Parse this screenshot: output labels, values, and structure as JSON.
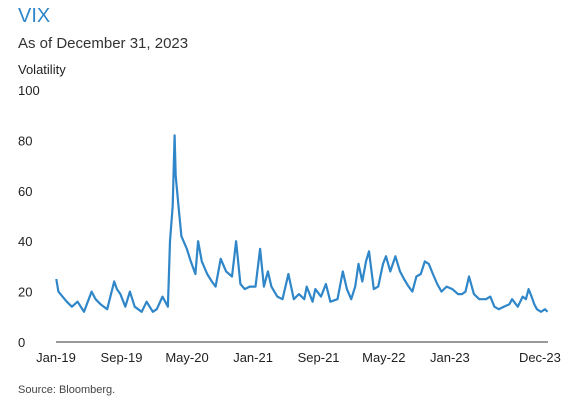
{
  "title": "VIX",
  "subtitle": "As of December 31, 2023",
  "source": "Source: Bloomberg.",
  "colors": {
    "title": "#2f86c8",
    "line": "#2f86c8",
    "axis": "#333333"
  },
  "chart_data": {
    "type": "line",
    "title": "VIX",
    "subtitle": "As of December 31, 2023",
    "xlabel": "",
    "ylabel": "Volatility",
    "ylim": [
      0,
      100
    ],
    "yticks": [
      0,
      20,
      40,
      60,
      80,
      100
    ],
    "xlim": [
      "2019-01-01",
      "2023-12-31"
    ],
    "xticks": [
      {
        "date": "2019-01-01",
        "label": "Jan-19"
      },
      {
        "date": "2019-09-01",
        "label": "Sep-19"
      },
      {
        "date": "2020-05-01",
        "label": "May-20"
      },
      {
        "date": "2021-01-01",
        "label": "Jan-21"
      },
      {
        "date": "2021-09-01",
        "label": "Sep-21"
      },
      {
        "date": "2022-05-01",
        "label": "May-22"
      },
      {
        "date": "2023-01-01",
        "label": "Jan-23"
      },
      {
        "date": "2023-12-01",
        "label": "Dec-23"
      }
    ],
    "grid": false,
    "series": [
      {
        "values": [
          [
            "2019-01-02",
            25
          ],
          [
            "2019-01-10",
            20
          ],
          [
            "2019-01-25",
            18
          ],
          [
            "2019-02-10",
            16
          ],
          [
            "2019-03-01",
            14
          ],
          [
            "2019-03-22",
            16
          ],
          [
            "2019-04-15",
            12
          ],
          [
            "2019-05-13",
            20
          ],
          [
            "2019-05-28",
            17
          ],
          [
            "2019-06-15",
            15
          ],
          [
            "2019-07-10",
            13
          ],
          [
            "2019-08-05",
            24
          ],
          [
            "2019-08-15",
            21
          ],
          [
            "2019-08-28",
            19
          ],
          [
            "2019-09-15",
            14
          ],
          [
            "2019-10-02",
            20
          ],
          [
            "2019-10-20",
            14
          ],
          [
            "2019-11-15",
            12
          ],
          [
            "2019-12-03",
            16
          ],
          [
            "2019-12-26",
            12
          ],
          [
            "2020-01-10",
            13
          ],
          [
            "2020-01-31",
            18
          ],
          [
            "2020-02-20",
            14
          ],
          [
            "2020-02-28",
            40
          ],
          [
            "2020-03-09",
            54
          ],
          [
            "2020-03-16",
            82
          ],
          [
            "2020-03-20",
            66
          ],
          [
            "2020-03-31",
            53
          ],
          [
            "2020-04-10",
            42
          ],
          [
            "2020-04-30",
            37
          ],
          [
            "2020-05-15",
            32
          ],
          [
            "2020-06-01",
            27
          ],
          [
            "2020-06-11",
            40
          ],
          [
            "2020-06-25",
            32
          ],
          [
            "2020-07-15",
            27
          ],
          [
            "2020-08-01",
            24
          ],
          [
            "2020-08-15",
            22
          ],
          [
            "2020-09-03",
            33
          ],
          [
            "2020-09-23",
            28
          ],
          [
            "2020-10-15",
            26
          ],
          [
            "2020-10-30",
            40
          ],
          [
            "2020-11-15",
            23
          ],
          [
            "2020-12-01",
            21
          ],
          [
            "2020-12-20",
            22
          ],
          [
            "2021-01-10",
            22
          ],
          [
            "2021-01-27",
            37
          ],
          [
            "2021-02-10",
            22
          ],
          [
            "2021-02-25",
            28
          ],
          [
            "2021-03-10",
            22
          ],
          [
            "2021-04-01",
            18
          ],
          [
            "2021-04-20",
            17
          ],
          [
            "2021-05-12",
            27
          ],
          [
            "2021-06-01",
            17
          ],
          [
            "2021-06-20",
            19
          ],
          [
            "2021-07-10",
            17
          ],
          [
            "2021-07-19",
            22
          ],
          [
            "2021-08-10",
            16
          ],
          [
            "2021-08-20",
            21
          ],
          [
            "2021-09-10",
            18
          ],
          [
            "2021-09-28",
            23
          ],
          [
            "2021-10-15",
            16
          ],
          [
            "2021-11-10",
            17
          ],
          [
            "2021-11-30",
            28
          ],
          [
            "2021-12-15",
            21
          ],
          [
            "2021-12-31",
            17
          ],
          [
            "2022-01-15",
            22
          ],
          [
            "2022-01-27",
            31
          ],
          [
            "2022-02-10",
            24
          ],
          [
            "2022-02-24",
            32
          ],
          [
            "2022-03-07",
            36
          ],
          [
            "2022-03-25",
            21
          ],
          [
            "2022-04-10",
            22
          ],
          [
            "2022-04-28",
            31
          ],
          [
            "2022-05-09",
            34
          ],
          [
            "2022-05-25",
            28
          ],
          [
            "2022-06-13",
            34
          ],
          [
            "2022-06-30",
            28
          ],
          [
            "2022-07-15",
            25
          ],
          [
            "2022-08-01",
            22
          ],
          [
            "2022-08-15",
            20
          ],
          [
            "2022-08-30",
            26
          ],
          [
            "2022-09-15",
            27
          ],
          [
            "2022-09-30",
            32
          ],
          [
            "2022-10-15",
            31
          ],
          [
            "2022-10-30",
            27
          ],
          [
            "2022-11-15",
            23
          ],
          [
            "2022-12-01",
            20
          ],
          [
            "2022-12-20",
            22
          ],
          [
            "2023-01-10",
            21
          ],
          [
            "2023-01-31",
            19
          ],
          [
            "2023-02-15",
            19
          ],
          [
            "2023-02-28",
            20
          ],
          [
            "2023-03-13",
            26
          ],
          [
            "2023-03-31",
            19
          ],
          [
            "2023-04-20",
            17
          ],
          [
            "2023-05-15",
            17
          ],
          [
            "2023-05-31",
            18
          ],
          [
            "2023-06-15",
            14
          ],
          [
            "2023-07-01",
            13
          ],
          [
            "2023-07-20",
            14
          ],
          [
            "2023-08-10",
            15
          ],
          [
            "2023-08-20",
            17
          ],
          [
            "2023-09-10",
            14
          ],
          [
            "2023-09-28",
            18
          ],
          [
            "2023-10-10",
            17
          ],
          [
            "2023-10-20",
            21
          ],
          [
            "2023-10-31",
            18
          ],
          [
            "2023-11-10",
            15
          ],
          [
            "2023-11-20",
            13
          ],
          [
            "2023-12-05",
            12
          ],
          [
            "2023-12-20",
            13
          ],
          [
            "2023-12-29",
            12
          ]
        ]
      }
    ]
  }
}
